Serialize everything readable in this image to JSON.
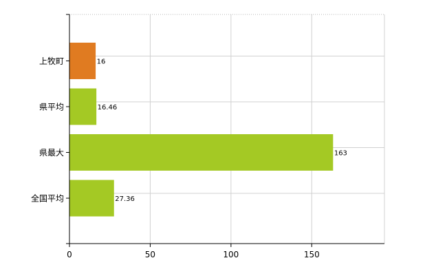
{
  "chart_data": {
    "type": "bar",
    "orientation": "horizontal",
    "categories": [
      "上牧町",
      "県平均",
      "県最大",
      "全国平均"
    ],
    "values": [
      16,
      16.46,
      163,
      27.36
    ],
    "data_labels": [
      "16",
      "16.46",
      "163",
      "27.36"
    ],
    "bar_colors": [
      "#e07b21",
      "#a4c924",
      "#a4c924",
      "#a4c924"
    ],
    "xlim": [
      0,
      195
    ],
    "x_ticks": [
      0,
      50,
      100,
      150
    ],
    "grid": true,
    "legend": "none"
  }
}
